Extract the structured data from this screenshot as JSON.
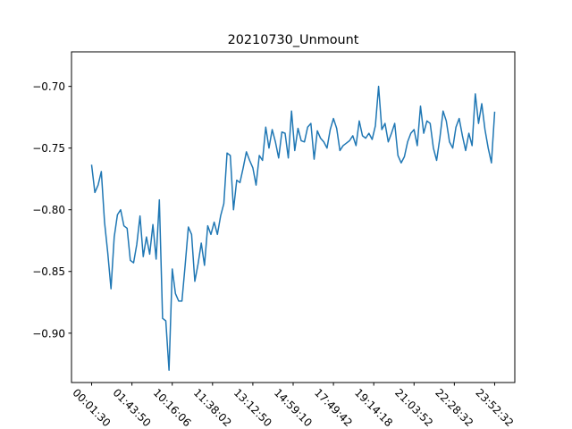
{
  "chart_data": {
    "type": "line",
    "title": "20210730_Unmount",
    "xlabel": "",
    "ylabel": "",
    "grid": false,
    "ylim": [
      -0.94,
      -0.672
    ],
    "y_ticks": [
      -0.9,
      -0.85,
      -0.8,
      -0.75,
      -0.7
    ],
    "y_tick_labels": [
      "−0.90",
      "−0.85",
      "−0.80",
      "−0.75",
      "−0.70"
    ],
    "x_tick_labels": [
      "00:01:30",
      "01:43:50",
      "10:16:06",
      "11:38:02",
      "13:12:50",
      "14:59:10",
      "17:49:42",
      "19:14:18",
      "21:03:52",
      "22:28:32",
      "23:52:32"
    ],
    "x_tick_positions": [
      0,
      12.5,
      25,
      37.5,
      50,
      62.5,
      75,
      87.5,
      100,
      112.5,
      125
    ],
    "xlim": [
      -6.25,
      131.25
    ],
    "series": [
      {
        "color": "#1f77b4",
        "x": [
          0,
          1,
          2,
          3,
          4,
          5,
          6,
          7,
          8,
          9,
          10,
          11,
          12,
          13,
          14,
          15,
          16,
          17,
          18,
          19,
          20,
          21,
          22,
          23,
          24,
          25,
          26,
          27,
          28,
          29,
          30,
          31,
          32,
          33,
          34,
          35,
          36,
          37,
          38,
          39,
          40,
          41,
          42,
          43,
          44,
          45,
          46,
          47,
          48,
          49,
          50,
          51,
          52,
          53,
          54,
          55,
          56,
          57,
          58,
          59,
          60,
          61,
          62,
          63,
          64,
          65,
          66,
          67,
          68,
          69,
          70,
          71,
          72,
          73,
          74,
          75,
          76,
          77,
          78,
          79,
          80,
          81,
          82,
          83,
          84,
          85,
          86,
          87,
          88,
          89,
          90,
          91,
          92,
          93,
          94,
          95,
          96,
          97,
          98,
          99,
          100,
          101,
          102,
          103,
          104,
          105,
          106,
          107,
          108,
          109,
          110,
          111,
          112,
          113,
          114,
          115,
          116,
          117,
          118,
          119,
          120,
          121,
          122,
          123,
          124,
          125
        ],
        "values": [
          -0.764,
          -0.786,
          -0.78,
          -0.769,
          -0.81,
          -0.835,
          -0.864,
          -0.822,
          -0.804,
          -0.8,
          -0.813,
          -0.815,
          -0.841,
          -0.843,
          -0.828,
          -0.805,
          -0.838,
          -0.822,
          -0.836,
          -0.812,
          -0.84,
          -0.792,
          -0.888,
          -0.89,
          -0.93,
          -0.848,
          -0.868,
          -0.874,
          -0.874,
          -0.845,
          -0.814,
          -0.82,
          -0.858,
          -0.844,
          -0.827,
          -0.845,
          -0.813,
          -0.82,
          -0.81,
          -0.82,
          -0.805,
          -0.795,
          -0.754,
          -0.756,
          -0.8,
          -0.776,
          -0.778,
          -0.766,
          -0.753,
          -0.76,
          -0.766,
          -0.78,
          -0.756,
          -0.76,
          -0.733,
          -0.75,
          -0.735,
          -0.745,
          -0.758,
          -0.737,
          -0.738,
          -0.758,
          -0.72,
          -0.752,
          -0.734,
          -0.744,
          -0.745,
          -0.733,
          -0.73,
          -0.759,
          -0.736,
          -0.742,
          -0.745,
          -0.75,
          -0.735,
          -0.726,
          -0.734,
          -0.752,
          -0.748,
          -0.746,
          -0.744,
          -0.74,
          -0.748,
          -0.728,
          -0.74,
          -0.742,
          -0.738,
          -0.743,
          -0.732,
          -0.7,
          -0.735,
          -0.73,
          -0.745,
          -0.738,
          -0.73,
          -0.756,
          -0.762,
          -0.757,
          -0.745,
          -0.738,
          -0.735,
          -0.748,
          -0.716,
          -0.738,
          -0.728,
          -0.73,
          -0.75,
          -0.76,
          -0.742,
          -0.72,
          -0.728,
          -0.745,
          -0.75,
          -0.733,
          -0.726,
          -0.74,
          -0.752,
          -0.738,
          -0.748,
          -0.706,
          -0.73,
          -0.714,
          -0.735,
          -0.75,
          -0.762,
          -0.721
        ]
      }
    ]
  }
}
